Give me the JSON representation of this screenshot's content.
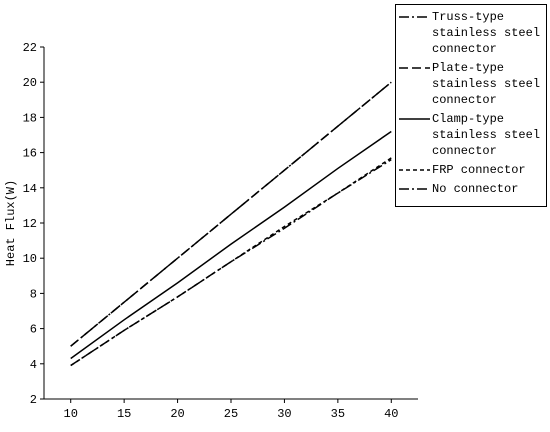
{
  "chart_data": {
    "type": "line",
    "y_label": "Heat Flux(W)",
    "x": [
      10,
      15,
      20,
      25,
      30,
      35,
      40
    ],
    "xlim": [
      7.5,
      42.5
    ],
    "xticks": [
      10,
      15,
      20,
      25,
      30,
      35,
      40
    ],
    "ylim": [
      2,
      22
    ],
    "yticks": [
      2,
      4,
      6,
      8,
      10,
      12,
      14,
      16,
      18,
      20,
      22
    ],
    "legend": "upper right",
    "series": [
      {
        "name": "Truss-type stainless steel connector",
        "color": "#000000",
        "style": "dash-dot",
        "values": [
          5.0,
          7.5,
          10.0,
          12.5,
          15.0,
          17.5,
          20.0
        ]
      },
      {
        "name": "Plate-type stainless steel connector",
        "color": "#000000",
        "style": "dash",
        "values": [
          5.0,
          7.5,
          10.0,
          12.5,
          15.0,
          17.5,
          20.0
        ]
      },
      {
        "name": "Clamp-type stainless steel connector",
        "color": "#000000",
        "style": "solid",
        "values": [
          4.3,
          6.5,
          8.6,
          10.8,
          12.9,
          15.1,
          17.2
        ]
      },
      {
        "name": "FRP connector",
        "color": "#000000",
        "style": "short-dash",
        "values": [
          3.9,
          5.9,
          7.8,
          9.8,
          11.8,
          13.7,
          15.7
        ]
      },
      {
        "name": "No connector",
        "color": "#000000",
        "style": "dash-dot",
        "values": [
          3.9,
          5.9,
          7.8,
          9.8,
          11.7,
          13.7,
          15.6
        ]
      }
    ]
  }
}
